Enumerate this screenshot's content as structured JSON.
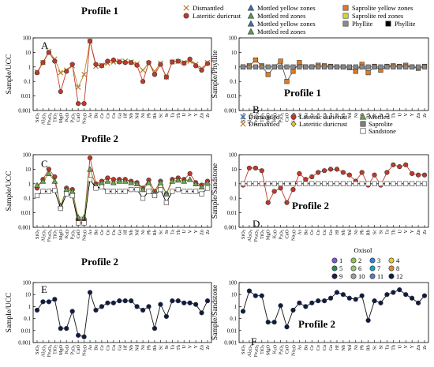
{
  "elements": [
    "SiO2",
    "Al2O3",
    "Fe2O3",
    "TiO2",
    "MgO",
    "K2O",
    "P2O5",
    "CaO",
    "Na2O",
    "As",
    "Ba",
    "Ce",
    "Co",
    "Cu",
    "Ga",
    "Hf",
    "Nb",
    "Nd",
    "Ni",
    "Pb",
    "Rb",
    "Sc",
    "Sr",
    "Ta",
    "Th",
    "U",
    "V",
    "Y",
    "Zn",
    "Zr"
  ],
  "colors": {
    "dismantled": "#b8862e",
    "lateritic_duricrust": "#c0392b",
    "mottled_yellow": "#3d6fb5",
    "mottled_red": "#4f9d4f",
    "saprolite_yellow": "#e07b20",
    "saprolite_red": "#d6d62a",
    "phyllite": "#8a8a8a",
    "mottled": "#6aa84f",
    "saprolite": "#7f7f7f",
    "sandstone": "#ffffff",
    "oxisol": [
      "#7a5cc7",
      "#8bc34a",
      "#3a7fd5",
      "#e7c62c",
      "#2e8b57",
      "#98c379",
      "#17a2b8",
      "#d98a3a",
      "#1a1f4d",
      "#9e9e9e",
      "#5b7db8",
      "#0d1b4a"
    ]
  },
  "chart_data": [
    {
      "id": "A",
      "type": "line",
      "title": "Profile 1",
      "panel_label": "A",
      "ylabel": "Sample/UCC",
      "yscale": "log",
      "ylim": [
        0.001,
        100
      ],
      "yticks": [
        "0.001",
        "0.01",
        "0.1",
        "1",
        "10",
        "100"
      ],
      "legend": [
        {
          "name": "Dismantled",
          "marker": "x",
          "color": "#b8862e"
        },
        {
          "name": "Lateritic duricrust",
          "marker": "circle",
          "color": "#c0392b"
        }
      ],
      "series": [
        {
          "name": "Dismantled",
          "values": [
            0.45,
            2,
            12,
            3.5,
            0.4,
            0.6,
            1.2,
            0.04,
            0.3,
            60,
            1.1,
            1.3,
            1.8,
            2.2,
            2.5,
            2.5,
            2.2,
            1.6,
            0.6,
            1.8,
            0.5,
            1.8,
            0.2,
            2.2,
            2.4,
            2,
            2.5,
            1.5,
            0.8,
            2
          ]
        },
        {
          "name": "Lateritic duricrust",
          "values": [
            0.4,
            2,
            10,
            2.5,
            0.02,
            0.5,
            1.5,
            0.003,
            0.003,
            60,
            1.5,
            1.2,
            2.5,
            3,
            2.2,
            2,
            2,
            1.3,
            0.1,
            2,
            0.3,
            1.5,
            0.2,
            2.2,
            2.5,
            1.8,
            3.5,
            1.2,
            0.6,
            1.7
          ]
        }
      ]
    },
    {
      "id": "B",
      "type": "line",
      "title": "Profile 1",
      "panel_label": "B",
      "ylabel": "Sample/Phyllite",
      "yscale": "log",
      "ylim": [
        0.001,
        100
      ],
      "yticks": [
        "0.001",
        "0.01",
        "0.1",
        "1",
        "10",
        "100"
      ],
      "legend": [
        {
          "name": "Mottled yellow zones",
          "marker": "triangle",
          "color": "#3d6fb5"
        },
        {
          "name": "Mottled red zones",
          "marker": "triangle",
          "color": "#4f9d4f"
        },
        {
          "name": "Mottled yellow zones",
          "marker": "triangle",
          "color": "#3d6fb5"
        },
        {
          "name": "Mottled red zones",
          "marker": "triangle",
          "color": "#4f9d4f"
        },
        {
          "name": "Saprolite yellow zones",
          "marker": "square",
          "color": "#e07b20"
        },
        {
          "name": "Saprolite red zones",
          "marker": "square",
          "color": "#d6d62a"
        },
        {
          "name": "Phyllite",
          "marker": "square",
          "color": "#8a8a8a"
        },
        {
          "name": "Phyllite",
          "marker": "square",
          "color": "#000000"
        }
      ],
      "series": [
        {
          "name": "Saprolite yellow zones",
          "values": [
            1,
            1.2,
            3,
            1.2,
            0.3,
            1,
            2.5,
            0.1,
            0.5,
            2,
            1,
            1,
            1.3,
            1.2,
            1.1,
            1,
            1,
            0.9,
            0.5,
            1.5,
            0.4,
            1.1,
            0.6,
            1.1,
            1.2,
            1.1,
            1.3,
            1,
            0.8,
            1.1
          ]
        },
        {
          "name": "Phyllite",
          "values": [
            1,
            1,
            1,
            1,
            1,
            1,
            1,
            1,
            1,
            1,
            1,
            1,
            1,
            1,
            1,
            1,
            1,
            1,
            1,
            1,
            1,
            1,
            1,
            1,
            1,
            1,
            1,
            1,
            1,
            1
          ]
        }
      ]
    },
    {
      "id": "C",
      "type": "line",
      "title": "Profile 2",
      "panel_label": "C",
      "ylabel": "Sample/UCC",
      "yscale": "log",
      "ylim": [
        0.001,
        100
      ],
      "yticks": [
        "0.001",
        "0.01",
        "0.1",
        "1",
        "10",
        "100"
      ],
      "series": [
        {
          "name": "Lateritic duricrust",
          "values": [
            0.5,
            2,
            10,
            3,
            0.02,
            0.5,
            0.4,
            0.003,
            0.003,
            60,
            1,
            1.5,
            2.5,
            2,
            2,
            2,
            1.5,
            1.2,
            0.5,
            1.8,
            0.3,
            1.5,
            0.2,
            2,
            2.5,
            2,
            5,
            1.2,
            0.8,
            1.5
          ]
        },
        {
          "name": "Mottled",
          "values": [
            0.8,
            1.5,
            5,
            1.5,
            0.03,
            0.4,
            0.3,
            0.005,
            0.005,
            10,
            0.8,
            1.2,
            1.5,
            1.2,
            1.5,
            1.5,
            1.2,
            1,
            0.4,
            1.2,
            0.2,
            1.2,
            0.2,
            1.5,
            1.8,
            1.5,
            2,
            1,
            0.6,
            1.2
          ]
        },
        {
          "name": "Sandstone",
          "values": [
            0.15,
            0.3,
            0.3,
            0.35,
            0.02,
            0.2,
            0.15,
            0.002,
            0.002,
            2,
            0.5,
            0.6,
            0.3,
            0.3,
            0.3,
            0.3,
            0.4,
            0.4,
            0.1,
            0.3,
            0.15,
            0.4,
            0.05,
            0.3,
            0.4,
            0.3,
            0.3,
            0.3,
            0.2,
            0.5
          ]
        }
      ]
    },
    {
      "id": "D",
      "type": "line",
      "title": "Profile 2",
      "panel_label": "D",
      "ylabel": "Sample/Sandstone",
      "yscale": "log",
      "ylim": [
        0.001,
        100
      ],
      "yticks": [
        "0.001",
        "0.01",
        "0.1",
        "1",
        "10",
        "100"
      ],
      "legend": [
        {
          "name": "Dismantled",
          "marker": "x",
          "color": "#3d6fb5"
        },
        {
          "name": "Dismantled",
          "marker": "x",
          "color": "#b8862e"
        },
        {
          "name": "Lateritic duricrust",
          "marker": "circle",
          "color": "#c0392b"
        },
        {
          "name": "Lateritic duricrust",
          "marker": "diamond",
          "color": "#e7c62c"
        },
        {
          "name": "Mottled",
          "marker": "triangle",
          "color": "#6aa84f"
        },
        {
          "name": "Saprolite",
          "marker": "square",
          "color": "#7f7f7f"
        },
        {
          "name": "Sandstone",
          "marker": "square",
          "color": "#ffffff"
        }
      ],
      "series": [
        {
          "name": "Lateritic duricrust",
          "values": [
            0.8,
            12,
            12,
            8,
            0.05,
            0.3,
            0.5,
            0.05,
            0.4,
            5,
            2,
            3,
            6,
            8,
            10,
            10,
            6,
            4,
            1.5,
            6,
            0.8,
            4,
            0.8,
            6,
            20,
            15,
            20,
            5,
            4,
            4
          ]
        },
        {
          "name": "Sandstone",
          "values": [
            1,
            1,
            1,
            1,
            1,
            1,
            1,
            1,
            1,
            1,
            1,
            1,
            1,
            1,
            1,
            1,
            1,
            1,
            1,
            1,
            1,
            1,
            1,
            1,
            1,
            1,
            1,
            1,
            1,
            1
          ]
        }
      ]
    },
    {
      "id": "E",
      "type": "line",
      "title": "Profile 2",
      "panel_label": "E",
      "ylabel": "Sample/UCC",
      "yscale": "log",
      "ylim": [
        0.001,
        100
      ],
      "yticks": [
        "0.001",
        "0.01",
        "0.1",
        "1",
        "10",
        "100"
      ],
      "series": [
        {
          "name": "12",
          "values": [
            0.5,
            2.5,
            2.5,
            4,
            0.015,
            0.015,
            0.4,
            0.004,
            0.003,
            15,
            0.5,
            1,
            2,
            2,
            3,
            3,
            3,
            1,
            0.5,
            1,
            0.015,
            1.5,
            0.15,
            3,
            3,
            2,
            2,
            1.5,
            0.3,
            3
          ]
        }
      ]
    },
    {
      "id": "F",
      "type": "line",
      "title": "Profile 2",
      "panel_label": "F",
      "ylabel": "Sample/Sandstone",
      "yscale": "log",
      "ylim": [
        0.001,
        100
      ],
      "yticks": [
        "0.001",
        "0.01",
        "0.1",
        "1",
        "10",
        "100"
      ],
      "legend_title": "Oxisol",
      "legend": [
        "1",
        "2",
        "3",
        "4",
        "5",
        "6",
        "7",
        "8",
        "9",
        "10",
        "11",
        "12"
      ],
      "series": [
        {
          "name": "12",
          "values": [
            0.4,
            20,
            8,
            8,
            0.05,
            0.05,
            1.2,
            0.02,
            0.5,
            2,
            1,
            2,
            3,
            3,
            5,
            15,
            10,
            5,
            4,
            8,
            0.07,
            3,
            2,
            10,
            15,
            25,
            10,
            5,
            2,
            8
          ]
        }
      ]
    }
  ]
}
